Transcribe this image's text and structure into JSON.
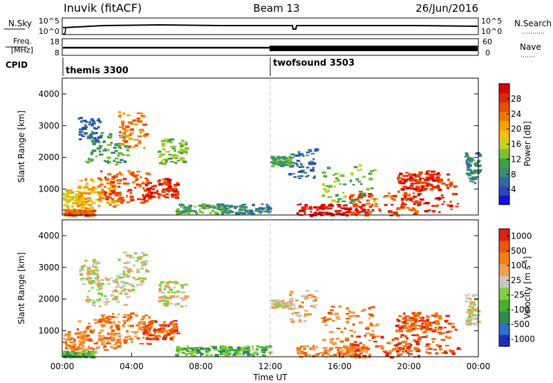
{
  "header": {
    "station": "Inuvik (fitACF)",
    "beam": "Beam 13",
    "date": "26/Jun/2016"
  },
  "summary_panels": {
    "nsky_label": "N.Sky",
    "nsky_ticks": [
      "10^5",
      "10^0"
    ],
    "nsearch_label": "N.Search",
    "nsearch_ticks": [
      "10^5",
      "10^0"
    ],
    "freq_label": "Freq.",
    "freq_unit": "[MHz]",
    "freq_ticks": [
      "18",
      "8"
    ],
    "nave_label": "Nave",
    "nave_ticks": [
      "60",
      "0"
    ],
    "cpid_label": "CPID",
    "cpid_segments": [
      {
        "label": "themis 3300",
        "start_hour": 0,
        "end_hour": 12
      },
      {
        "label": "twofsound 3503",
        "start_hour": 12,
        "end_hour": 24
      }
    ]
  },
  "chart_data": [
    {
      "type": "heatmap",
      "title": "",
      "xlabel": "",
      "ylabel": "Slant Range [km]",
      "x_range_hours": [
        0,
        24
      ],
      "ylim": [
        180,
        4500
      ],
      "yticks": [
        1000,
        2000,
        3000,
        4000
      ],
      "colorbar": {
        "label": "Power [dB]",
        "ticks": [
          "4",
          "8",
          "12",
          "16",
          "20",
          "24",
          "28"
        ],
        "tick_values": [
          4,
          8,
          12,
          16,
          20,
          24,
          28
        ],
        "range": [
          0,
          32
        ],
        "colors": [
          "#1010e0",
          "#2a48b8",
          "#2f6aa8",
          "#3c8a70",
          "#3ea048",
          "#7cc030",
          "#c8d020",
          "#f0c010",
          "#f8a000",
          "#f07800",
          "#e85000",
          "#e02808",
          "#d80000"
        ]
      }
    },
    {
      "type": "heatmap",
      "title": "",
      "xlabel": "Time UT",
      "ylabel": "Slant Range [km]",
      "x_range_hours": [
        0,
        24
      ],
      "ylim": [
        180,
        4500
      ],
      "yticks": [
        1000,
        2000,
        3000,
        4000
      ],
      "xticks": [
        "00:00",
        "04:00",
        "08:00",
        "12:00",
        "16:00",
        "20:00",
        "00:00"
      ],
      "colorbar": {
        "label": "Velocity [m s-1]",
        "ticks": [
          "1000",
          "500",
          "100",
          "25",
          "-25",
          "-100",
          "-500",
          "-1000"
        ],
        "colors": [
          "#1d2fb8",
          "#2f6fd0",
          "#2e8a50",
          "#48b030",
          "#80d040",
          "#c8c8c0",
          "#f0a050",
          "#f08018",
          "#e85808",
          "#e02010"
        ]
      }
    }
  ]
}
